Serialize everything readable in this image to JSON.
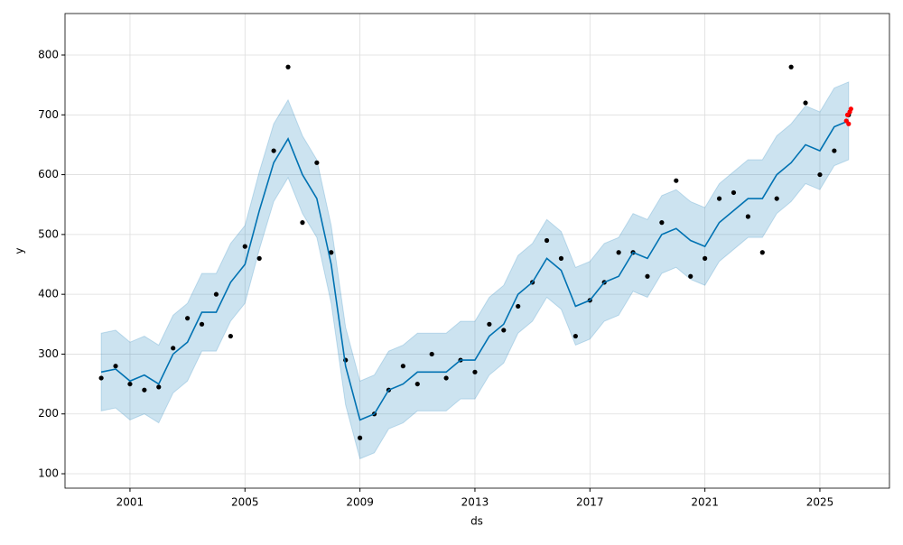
{
  "chart_data": {
    "type": "line",
    "xlabel": "ds",
    "ylabel": "y",
    "x": [
      2000.0,
      2000.5,
      2001.0,
      2001.5,
      2002.0,
      2002.5,
      2003.0,
      2003.5,
      2004.0,
      2004.5,
      2005.0,
      2005.5,
      2006.0,
      2006.5,
      2007.0,
      2007.5,
      2008.0,
      2008.5,
      2009.0,
      2009.5,
      2010.0,
      2010.5,
      2011.0,
      2011.5,
      2012.0,
      2012.5,
      2013.0,
      2013.5,
      2014.0,
      2014.5,
      2015.0,
      2015.5,
      2016.0,
      2016.5,
      2017.0,
      2017.5,
      2018.0,
      2018.5,
      2019.0,
      2019.5,
      2020.0,
      2020.5,
      2021.0,
      2021.5,
      2022.0,
      2022.5,
      2023.0,
      2023.5,
      2024.0,
      2024.5,
      2025.0,
      2025.5,
      2026.0
    ],
    "observed": {
      "color": "#000000",
      "values": [
        260,
        280,
        250,
        240,
        245,
        310,
        360,
        350,
        400,
        330,
        480,
        460,
        640,
        780,
        520,
        620,
        470,
        290,
        160,
        200,
        240,
        280,
        250,
        300,
        260,
        290,
        270,
        350,
        340,
        380,
        420,
        490,
        460,
        330,
        390,
        420,
        470,
        470,
        430,
        520,
        590,
        430,
        460,
        560,
        570,
        530,
        470,
        560,
        780,
        720,
        600,
        640,
        700
      ]
    },
    "forecast": {
      "color": "#0072b2",
      "values": [
        270,
        275,
        255,
        265,
        250,
        300,
        320,
        370,
        370,
        420,
        450,
        540,
        620,
        660,
        600,
        560,
        450,
        280,
        190,
        200,
        240,
        250,
        270,
        270,
        270,
        290,
        290,
        330,
        350,
        400,
        420,
        460,
        440,
        380,
        390,
        420,
        430,
        470,
        460,
        500,
        510,
        490,
        480,
        520,
        540,
        560,
        560,
        600,
        620,
        650,
        640,
        680,
        690
      ]
    },
    "band": {
      "color": "#0072b2",
      "lower": [
        205,
        210,
        190,
        200,
        185,
        235,
        255,
        305,
        305,
        355,
        385,
        475,
        555,
        595,
        535,
        495,
        385,
        215,
        125,
        135,
        175,
        185,
        205,
        205,
        205,
        225,
        225,
        265,
        285,
        335,
        355,
        395,
        375,
        315,
        325,
        355,
        365,
        405,
        395,
        435,
        445,
        425,
        415,
        455,
        475,
        495,
        495,
        535,
        555,
        585,
        575,
        615,
        625
      ],
      "upper": [
        335,
        340,
        320,
        330,
        315,
        365,
        385,
        435,
        435,
        485,
        515,
        605,
        685,
        725,
        665,
        625,
        515,
        345,
        255,
        265,
        305,
        315,
        335,
        335,
        335,
        355,
        355,
        395,
        415,
        465,
        485,
        525,
        505,
        445,
        455,
        485,
        495,
        535,
        525,
        565,
        575,
        555,
        545,
        585,
        605,
        625,
        625,
        665,
        685,
        715,
        705,
        745,
        755
      ]
    },
    "recent": {
      "color": "#ff0000",
      "x": [
        2025.92,
        2025.96,
        2026.0,
        2026.04,
        2026.08
      ],
      "values": [
        690,
        700,
        685,
        705,
        710
      ]
    },
    "xlim": [
      1998.74,
      2027.42
    ],
    "xticks": [
      2001,
      2005,
      2009,
      2013,
      2017,
      2021,
      2025
    ],
    "ylim": [
      75.9,
      869.4
    ],
    "yticks": [
      100,
      200,
      300,
      400,
      500,
      600,
      700,
      800
    ],
    "grid": true
  }
}
